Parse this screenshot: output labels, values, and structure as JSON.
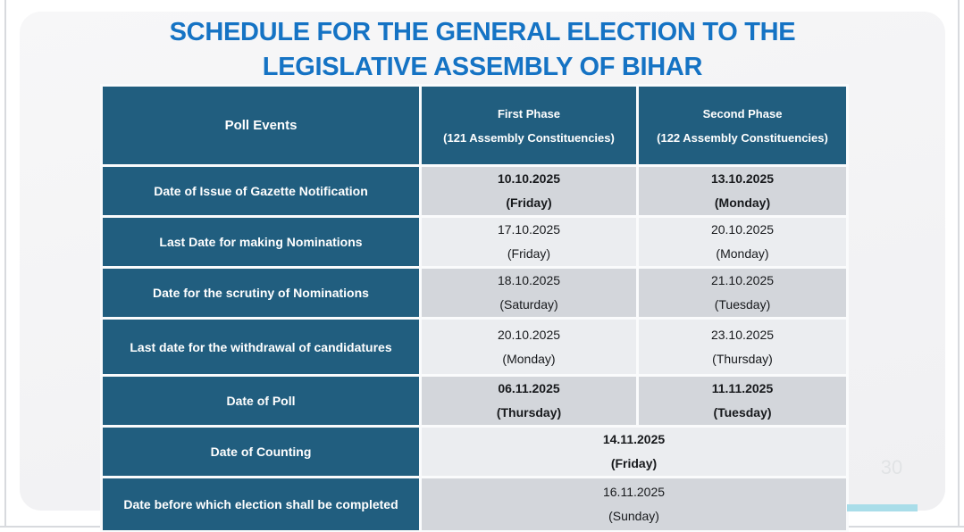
{
  "slide": {
    "title_line1": "SCHEDULE FOR THE GENERAL ELECTION TO THE",
    "title_line2": "LEGISLATIVE ASSEMBLY OF BIHAR",
    "page_number": "30"
  },
  "table": {
    "header": {
      "poll_events": "Poll Events",
      "first_phase_line1": "First Phase",
      "first_phase_line2": "(121 Assembly Constituencies)",
      "second_phase_line1": "Second Phase",
      "second_phase_line2": "(122 Assembly Constituencies)"
    },
    "rows": [
      {
        "event": "Date of Issue of Gazette Notification",
        "first_date": "10.10.2025",
        "first_day": "(Friday)",
        "second_date": "13.10.2025",
        "second_day": "(Monday)",
        "bold": true
      },
      {
        "event": "Last Date for making Nominations",
        "first_date": "17.10.2025",
        "first_day": "(Friday)",
        "second_date": "20.10.2025",
        "second_day": "(Monday)",
        "bold": false
      },
      {
        "event": "Date for the scrutiny of Nominations",
        "first_date": "18.10.2025",
        "first_day": "(Saturday)",
        "second_date": "21.10.2025",
        "second_day": "(Tuesday)",
        "bold": false
      },
      {
        "event": "Last date for the withdrawal of candidatures",
        "first_date": "20.10.2025",
        "first_day": "(Monday)",
        "second_date": "23.10.2025",
        "second_day": "(Thursday)",
        "bold": false
      },
      {
        "event": "Date of Poll",
        "first_date": "06.11.2025",
        "first_day": "(Thursday)",
        "second_date": "11.11.2025",
        "second_day": "(Tuesday)",
        "bold": true
      },
      {
        "event": "Date of Counting",
        "merged": true,
        "merged_date": "14.11.2025",
        "merged_day": "(Friday)",
        "bold": true
      },
      {
        "event": "Date before which election shall be completed",
        "merged": true,
        "merged_date": "16.11.2025",
        "merged_day": "(Sunday)",
        "bold": false
      }
    ]
  },
  "colors": {
    "title_blue": "#1573c4",
    "header_teal": "#215e7f",
    "row_gray": "#d3d6db",
    "row_light": "#ebedf0",
    "accent_cyan": "#a9dde9",
    "edge_gray": "#d8dade"
  }
}
